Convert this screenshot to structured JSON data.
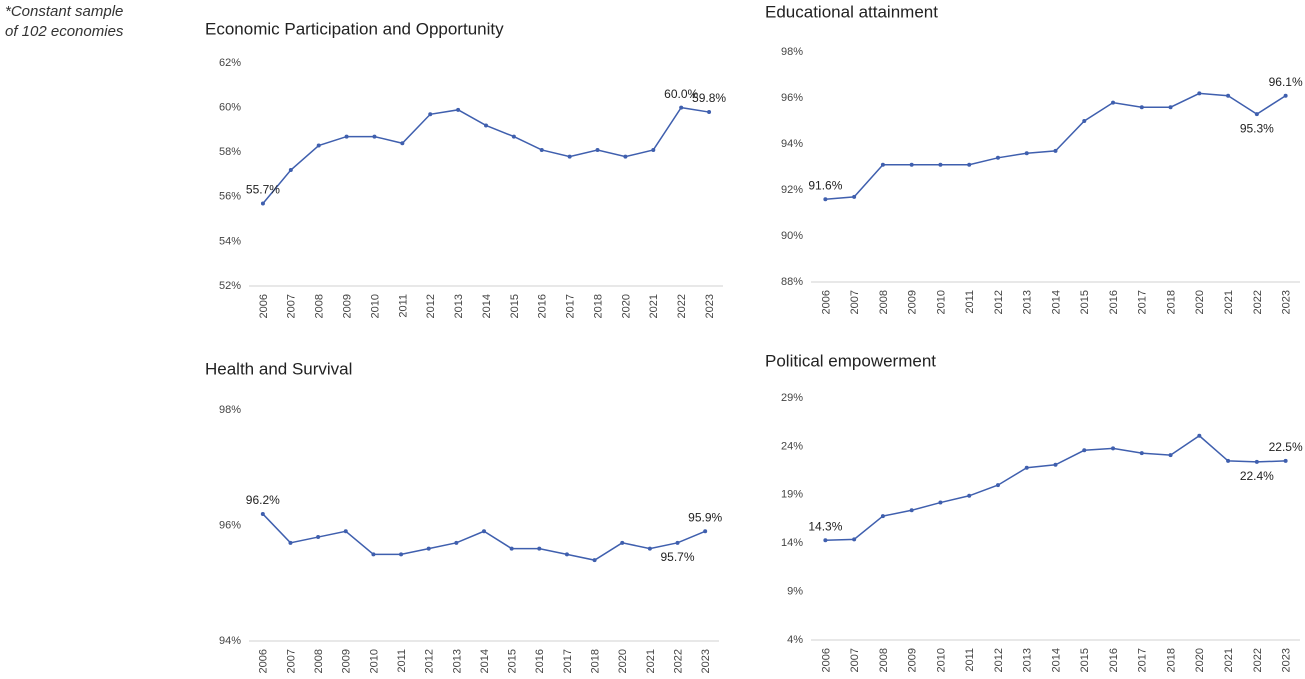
{
  "note": [
    "*Constant sample",
    "of 102 economies"
  ],
  "chart_data": [
    {
      "type": "line",
      "title": "Economic Participation and Opportunity",
      "categories": [
        "2006",
        "2007",
        "2008",
        "2009",
        "2010",
        "2011",
        "2012",
        "2013",
        "2014",
        "2015",
        "2016",
        "2017",
        "2018",
        "2020",
        "2021",
        "2022",
        "2023"
      ],
      "values": [
        55.7,
        57.2,
        58.3,
        58.7,
        58.7,
        58.4,
        59.7,
        59.9,
        59.2,
        58.7,
        58.1,
        57.8,
        58.1,
        57.8,
        58.1,
        60.0,
        59.8
      ],
      "value_labels": [
        "55.7%",
        null,
        null,
        null,
        null,
        null,
        null,
        null,
        null,
        null,
        null,
        null,
        null,
        null,
        null,
        "60.0%",
        "59.8%"
      ],
      "color": "#3f5fae",
      "ylim": [
        52,
        62
      ],
      "yticks": [
        {
          "value": 52,
          "label": "52%"
        },
        {
          "value": 54,
          "label": "54%"
        },
        {
          "value": 56,
          "label": "56%"
        },
        {
          "value": 58,
          "label": "58%"
        },
        {
          "value": 60,
          "label": "60%"
        },
        {
          "value": 62,
          "label": "62%"
        }
      ]
    },
    {
      "type": "line",
      "title": "Educational attainment",
      "categories": [
        "2006",
        "2007",
        "2008",
        "2009",
        "2010",
        "2011",
        "2012",
        "2013",
        "2014",
        "2015",
        "2016",
        "2017",
        "2018",
        "2020",
        "2021",
        "2022",
        "2023"
      ],
      "values": [
        91.6,
        91.7,
        93.1,
        93.1,
        93.1,
        93.1,
        93.4,
        93.6,
        93.7,
        95.0,
        95.8,
        95.6,
        95.6,
        96.2,
        96.1,
        95.3,
        96.1
      ],
      "value_labels": [
        "91.6%",
        null,
        null,
        null,
        null,
        null,
        null,
        null,
        null,
        null,
        null,
        null,
        null,
        null,
        null,
        "95.3%",
        "96.1%"
      ],
      "color": "#3f5fae",
      "ylim": [
        88,
        98
      ],
      "yticks": [
        {
          "value": 88,
          "label": "88%"
        },
        {
          "value": 90,
          "label": "90%"
        },
        {
          "value": 92,
          "label": "92%"
        },
        {
          "value": 94,
          "label": "94%"
        },
        {
          "value": 96,
          "label": "96%"
        },
        {
          "value": 98,
          "label": "98%"
        }
      ]
    },
    {
      "type": "line",
      "title": "Health and Survival",
      "categories": [
        "2006",
        "2007",
        "2008",
        "2009",
        "2010",
        "2011",
        "2012",
        "2013",
        "2014",
        "2015",
        "2016",
        "2017",
        "2018",
        "2020",
        "2021",
        "2022",
        "2023"
      ],
      "values": [
        96.2,
        95.7,
        95.8,
        95.9,
        95.5,
        95.5,
        95.6,
        95.7,
        95.9,
        95.6,
        95.6,
        95.5,
        95.4,
        95.7,
        95.6,
        95.7,
        95.9
      ],
      "value_labels": [
        "96.2%",
        null,
        null,
        null,
        null,
        null,
        null,
        null,
        null,
        null,
        null,
        null,
        null,
        null,
        null,
        "95.7%",
        "95.9%"
      ],
      "color": "#3f5fae",
      "ylim": [
        94,
        98
      ],
      "yticks": [
        {
          "value": 94,
          "label": "94%"
        },
        {
          "value": 96,
          "label": "96%"
        },
        {
          "value": 98,
          "label": "98%"
        }
      ]
    },
    {
      "type": "line",
      "title": "Political empowerment",
      "categories": [
        "2006",
        "2007",
        "2008",
        "2009",
        "2010",
        "2011",
        "2012",
        "2013",
        "2014",
        "2015",
        "2016",
        "2017",
        "2018",
        "2020",
        "2021",
        "2022",
        "2023"
      ],
      "values": [
        14.3,
        14.4,
        16.8,
        17.4,
        18.2,
        18.9,
        20.0,
        21.8,
        22.1,
        23.6,
        23.8,
        23.3,
        23.1,
        25.1,
        22.5,
        22.4,
        22.5
      ],
      "value_labels": [
        "14.3%",
        null,
        null,
        null,
        null,
        null,
        null,
        null,
        null,
        null,
        null,
        null,
        null,
        null,
        null,
        "22.4%",
        "22.5%"
      ],
      "color": "#3f5fae",
      "ylim": [
        4,
        29
      ],
      "yticks": [
        {
          "value": 4,
          "label": "4%"
        },
        {
          "value": 9,
          "label": "9%"
        },
        {
          "value": 14,
          "label": "14%"
        },
        {
          "value": 19,
          "label": "19%"
        },
        {
          "value": 24,
          "label": "24%"
        },
        {
          "value": 29,
          "label": "29%"
        }
      ]
    }
  ]
}
